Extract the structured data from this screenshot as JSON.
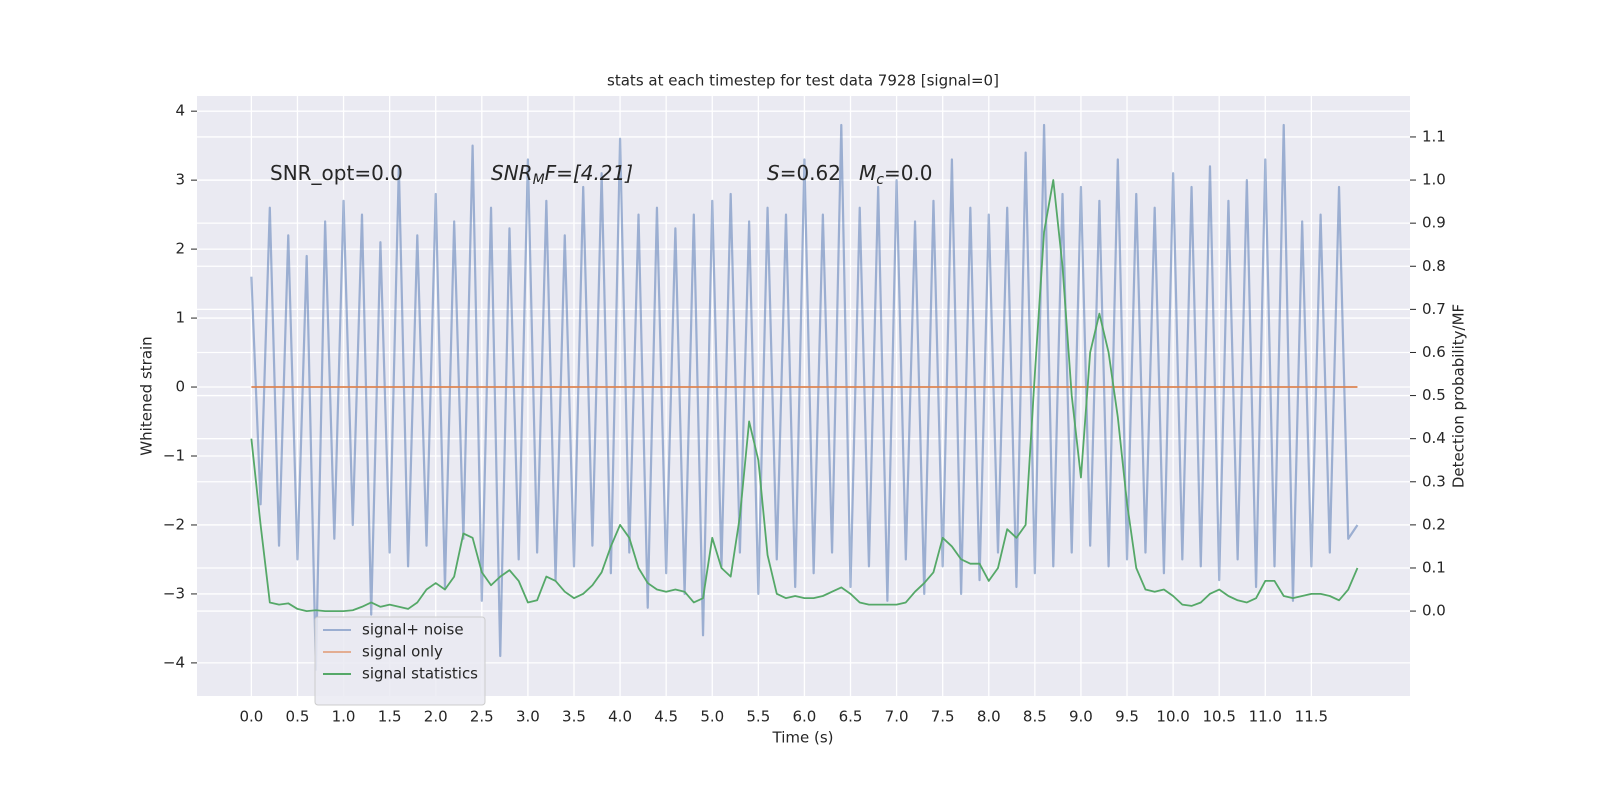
{
  "chart_data": {
    "type": "line",
    "title": "stats at each timestep for test data 7928 [signal=0]",
    "x_label": "Time (s)",
    "y_label": "Whitened strain",
    "y2_label": "Detection probability/MF",
    "annotations": [
      {
        "parts": [
          "SNR_opt=0.0"
        ]
      },
      {
        "parts": [
          "SNR",
          "M",
          "F=[4.21]"
        ]
      },
      {
        "parts": [
          "S",
          "=0.62"
        ]
      },
      {
        "parts": [
          "M",
          "c",
          "=0.0"
        ]
      }
    ],
    "x": [
      0,
      0.1,
      0.2,
      0.3,
      0.4,
      0.5,
      0.6,
      0.7,
      0.8,
      0.9,
      1,
      1.1,
      1.2,
      1.3,
      1.4,
      1.5,
      1.6,
      1.7,
      1.8,
      1.9,
      2,
      2.1,
      2.2,
      2.3,
      2.4,
      2.5,
      2.6,
      2.7,
      2.8,
      2.9,
      3,
      3.1,
      3.2,
      3.3,
      3.4,
      3.5,
      3.6,
      3.7,
      3.8,
      3.9,
      4,
      4.1,
      4.2,
      4.3,
      4.4,
      4.5,
      4.6,
      4.7,
      4.8,
      4.9,
      5,
      5.1,
      5.2,
      5.3,
      5.4,
      5.5,
      5.6,
      5.7,
      5.8,
      5.9,
      6,
      6.1,
      6.2,
      6.3,
      6.4,
      6.5,
      6.6,
      6.7,
      6.8,
      6.9,
      7,
      7.1,
      7.2,
      7.3,
      7.4,
      7.5,
      7.6,
      7.7,
      7.8,
      7.9,
      8,
      8.1,
      8.2,
      8.3,
      8.4,
      8.5,
      8.6,
      8.7,
      8.8,
      8.9,
      9,
      9.1,
      9.2,
      9.3,
      9.4,
      9.5,
      9.6,
      9.7,
      9.8,
      9.9,
      10,
      10.1,
      10.2,
      10.3,
      10.4,
      10.5,
      10.6,
      10.7,
      10.8,
      10.9,
      11,
      11.1,
      11.2,
      11.3,
      11.4,
      11.5,
      11.6,
      11.7,
      11.8,
      11.9,
      12
    ],
    "series": [
      {
        "name": "signal+ noise",
        "color": "#4c72b0",
        "axis": "y",
        "values": [
          1.6,
          -1.7,
          2.6,
          -2.3,
          2.2,
          -2.5,
          1.9,
          -4.1,
          2.4,
          -2.2,
          2.7,
          -2.0,
          2.5,
          -3.3,
          2.1,
          -2.4,
          3.2,
          -2.6,
          2.2,
          -2.3,
          2.8,
          -2.9,
          2.4,
          -2.2,
          3.5,
          -3.1,
          2.6,
          -3.9,
          2.3,
          -2.5,
          3.3,
          -2.4,
          2.7,
          -2.8,
          2.2,
          -2.6,
          2.9,
          -2.3,
          3.1,
          -2.7,
          3.6,
          -2.4,
          2.5,
          -3.2,
          2.6,
          -2.7,
          2.3,
          -3.0,
          2.5,
          -3.6,
          2.7,
          -2.6,
          2.8,
          -2.4,
          2.4,
          -3.0,
          2.6,
          -2.5,
          2.5,
          -2.9,
          3.3,
          -2.7,
          2.5,
          -2.4,
          3.8,
          -2.9,
          2.6,
          -2.6,
          2.9,
          -3.1,
          3.0,
          -2.5,
          2.4,
          -3.0,
          2.7,
          -2.6,
          3.3,
          -3.0,
          2.6,
          -2.8,
          2.5,
          -2.4,
          2.6,
          -2.9,
          3.4,
          -2.7,
          3.8,
          -2.6,
          2.8,
          -2.4,
          2.9,
          -2.3,
          2.7,
          -2.6,
          3.3,
          -2.5,
          2.8,
          -2.4,
          2.6,
          -2.7,
          3.1,
          -2.5,
          2.9,
          -2.6,
          3.2,
          -2.8,
          2.7,
          -2.5,
          3.0,
          -2.9,
          3.3,
          -2.6,
          3.8,
          -3.1,
          2.4,
          -2.6,
          2.5,
          -2.4,
          2.9,
          -2.2,
          -2.0
        ]
      },
      {
        "name": "signal only",
        "color": "#dd8452",
        "axis": "y",
        "values": [
          0,
          0,
          0,
          0,
          0,
          0,
          0,
          0,
          0,
          0,
          0,
          0,
          0,
          0,
          0,
          0,
          0,
          0,
          0,
          0,
          0,
          0,
          0,
          0,
          0,
          0,
          0,
          0,
          0,
          0,
          0,
          0,
          0,
          0,
          0,
          0,
          0,
          0,
          0,
          0,
          0,
          0,
          0,
          0,
          0,
          0,
          0,
          0,
          0,
          0,
          0,
          0,
          0,
          0,
          0,
          0,
          0,
          0,
          0,
          0,
          0,
          0,
          0,
          0,
          0,
          0,
          0,
          0,
          0,
          0,
          0,
          0,
          0,
          0,
          0,
          0,
          0,
          0,
          0,
          0,
          0,
          0,
          0,
          0,
          0,
          0,
          0,
          0,
          0,
          0,
          0,
          0,
          0,
          0,
          0,
          0,
          0,
          0,
          0,
          0,
          0,
          0,
          0,
          0,
          0,
          0,
          0,
          0,
          0,
          0,
          0,
          0,
          0,
          0,
          0,
          0,
          0,
          0,
          0,
          0,
          0
        ]
      },
      {
        "name": "signal statistics",
        "color": "#55a868",
        "axis": "y2",
        "values": [
          0.4,
          0.2,
          0.02,
          0.015,
          0.018,
          0.005,
          0.0,
          0.002,
          0.0,
          0.0,
          0.0,
          0.002,
          0.01,
          0.02,
          0.01,
          0.015,
          0.01,
          0.005,
          0.02,
          0.05,
          0.065,
          0.05,
          0.08,
          0.18,
          0.17,
          0.09,
          0.06,
          0.08,
          0.095,
          0.07,
          0.02,
          0.025,
          0.08,
          0.07,
          0.045,
          0.03,
          0.04,
          0.06,
          0.09,
          0.15,
          0.2,
          0.17,
          0.1,
          0.065,
          0.05,
          0.045,
          0.05,
          0.045,
          0.02,
          0.03,
          0.17,
          0.1,
          0.08,
          0.22,
          0.44,
          0.35,
          0.13,
          0.04,
          0.03,
          0.035,
          0.03,
          0.03,
          0.035,
          0.045,
          0.055,
          0.04,
          0.02,
          0.015,
          0.015,
          0.015,
          0.015,
          0.02,
          0.045,
          0.065,
          0.09,
          0.17,
          0.15,
          0.12,
          0.11,
          0.11,
          0.07,
          0.1,
          0.19,
          0.17,
          0.2,
          0.55,
          0.88,
          1.0,
          0.8,
          0.5,
          0.31,
          0.6,
          0.69,
          0.6,
          0.45,
          0.25,
          0.1,
          0.05,
          0.045,
          0.05,
          0.035,
          0.015,
          0.012,
          0.02,
          0.04,
          0.05,
          0.035,
          0.025,
          0.02,
          0.03,
          0.07,
          0.07,
          0.035,
          0.03,
          0.035,
          0.04,
          0.04,
          0.035,
          0.025,
          0.05,
          0.1
        ]
      }
    ],
    "xlim": [
      -0.59,
      12.57
    ],
    "ylim": [
      -4.48,
      4.22
    ],
    "y2lim": [
      -0.197,
      1.195
    ],
    "xticks": [
      {
        "value": 0,
        "label": "0.0"
      },
      {
        "value": 0.5,
        "label": "0.5"
      },
      {
        "value": 1,
        "label": "1.0"
      },
      {
        "value": 1.5,
        "label": "1.5"
      },
      {
        "value": 2,
        "label": "2.0"
      },
      {
        "value": 2.5,
        "label": "2.5"
      },
      {
        "value": 3,
        "label": "3.0"
      },
      {
        "value": 3.5,
        "label": "3.5"
      },
      {
        "value": 4,
        "label": "4.0"
      },
      {
        "value": 4.5,
        "label": "4.5"
      },
      {
        "value": 5,
        "label": "5.0"
      },
      {
        "value": 5.5,
        "label": "5.5"
      },
      {
        "value": 6,
        "label": "6.0"
      },
      {
        "value": 6.5,
        "label": "6.5"
      },
      {
        "value": 7,
        "label": "7.0"
      },
      {
        "value": 7.5,
        "label": "7.5"
      },
      {
        "value": 8,
        "label": "8.0"
      },
      {
        "value": 8.5,
        "label": "8.5"
      },
      {
        "value": 9,
        "label": "9.0"
      },
      {
        "value": 9.5,
        "label": "9.5"
      },
      {
        "value": 10,
        "label": "10.0"
      },
      {
        "value": 10.5,
        "label": "10.5"
      },
      {
        "value": 11,
        "label": "11.0"
      },
      {
        "value": 11.5,
        "label": "11.5"
      }
    ],
    "yticks": [
      {
        "value": -4,
        "label": "−4"
      },
      {
        "value": -3,
        "label": "−3"
      },
      {
        "value": -2,
        "label": "−2"
      },
      {
        "value": -1,
        "label": "−1"
      },
      0,
      1,
      2,
      3,
      4
    ],
    "y2ticks": [
      {
        "value": 0,
        "label": "0.0"
      },
      {
        "value": 0.1,
        "label": "0.1"
      },
      {
        "value": 0.2,
        "label": "0.2"
      },
      {
        "value": 0.3,
        "label": "0.3"
      },
      {
        "value": 0.4,
        "label": "0.4"
      },
      {
        "value": 0.5,
        "label": "0.5"
      },
      {
        "value": 0.6,
        "label": "0.6"
      },
      {
        "value": 0.7,
        "label": "0.7"
      },
      {
        "value": 0.8,
        "label": "0.8"
      },
      {
        "value": 0.9,
        "label": "0.9"
      },
      {
        "value": 1,
        "label": "1.0"
      },
      {
        "value": 1.1,
        "label": "1.1"
      }
    ],
    "grid": true,
    "legend": "lower left"
  }
}
